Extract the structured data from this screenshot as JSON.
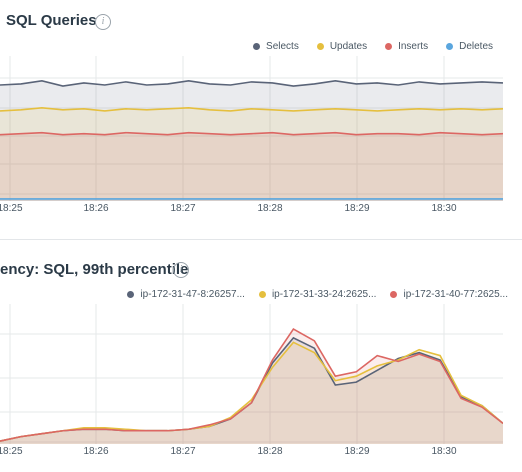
{
  "panels": [
    {
      "title": "SQL Queries",
      "info_icon": "info-icon",
      "legend": [
        {
          "name": "Selects",
          "color": "#5a6478"
        },
        {
          "name": "Updates",
          "color": "#e5bf3e"
        },
        {
          "name": "Inserts",
          "color": "#dc6763"
        },
        {
          "name": "Deletes",
          "color": "#5aa6de"
        }
      ],
      "x_ticks": [
        "18:25",
        "18:26",
        "18:27",
        "18:28",
        "18:29",
        "18:30"
      ]
    },
    {
      "title": "ency: SQL, 99th percentile",
      "info_icon": "info-icon",
      "legend": [
        {
          "name": "ip-172-31-47-8:26257...",
          "color": "#5a6478"
        },
        {
          "name": "ip-172-31-33-24:2625...",
          "color": "#e5bf3e"
        },
        {
          "name": "ip-172-31-40-77:2625...",
          "color": "#dc6763"
        }
      ],
      "x_ticks": [
        "18:25",
        "18:26",
        "18:27",
        "18:28",
        "18:29",
        "18:30"
      ]
    }
  ],
  "chart_data": [
    {
      "type": "area",
      "title": "SQL Queries",
      "x": [
        "18:24:45",
        "18:25",
        "18:25:15",
        "18:25:30",
        "18:25:45",
        "18:26",
        "18:26:15",
        "18:26:30",
        "18:26:45",
        "18:27",
        "18:27:15",
        "18:27:30",
        "18:27:45",
        "18:28",
        "18:28:15",
        "18:28:30",
        "18:28:45",
        "18:29",
        "18:29:15",
        "18:29:30",
        "18:29:45",
        "18:30",
        "18:30:15",
        "18:30:30",
        "18:30:45"
      ],
      "series": [
        {
          "name": "Selects",
          "color": "#5a6478",
          "values": [
            112,
            113,
            116,
            111,
            114,
            112,
            115,
            112,
            113,
            116,
            113,
            112,
            115,
            114,
            111,
            113,
            116,
            113,
            114,
            112,
            115,
            113,
            114,
            115,
            114
          ]
        },
        {
          "name": "Updates",
          "color": "#e5bf3e",
          "values": [
            87,
            88,
            90,
            88,
            89,
            87,
            89,
            88,
            89,
            90,
            88,
            87,
            89,
            88,
            87,
            88,
            89,
            88,
            87,
            88,
            89,
            88,
            89,
            88,
            89
          ]
        },
        {
          "name": "Inserts",
          "color": "#dc6763",
          "values": [
            64,
            65,
            66,
            64,
            65,
            64,
            66,
            65,
            64,
            66,
            65,
            64,
            65,
            66,
            64,
            65,
            66,
            64,
            65,
            65,
            64,
            66,
            65,
            64,
            65
          ]
        },
        {
          "name": "Deletes",
          "color": "#5aa6de",
          "values": [
            2,
            2,
            2,
            2,
            2,
            2,
            2,
            2,
            2,
            2,
            2,
            2,
            2,
            2,
            2,
            2,
            2,
            2,
            2,
            2,
            2,
            2,
            2,
            2,
            2
          ]
        }
      ],
      "ylim": [
        0,
        140
      ],
      "grid": true,
      "legend_position": "top-right"
    },
    {
      "type": "area",
      "title": "ency: SQL, 99th percentile",
      "x": [
        "18:24:45",
        "18:25",
        "18:25:15",
        "18:25:30",
        "18:25:45",
        "18:26",
        "18:26:15",
        "18:26:30",
        "18:26:45",
        "18:27",
        "18:27:15",
        "18:27:30",
        "18:27:45",
        "18:28",
        "18:28:15",
        "18:28:30",
        "18:28:45",
        "18:29",
        "18:29:15",
        "18:29:30",
        "18:29:45",
        "18:30",
        "18:30:15",
        "18:30:30",
        "18:30:45"
      ],
      "series": [
        {
          "name": "ip-172-31-47-8:26257...",
          "color": "#5a6478",
          "values": [
            2,
            5,
            7,
            9,
            10,
            10,
            9,
            9,
            9,
            10,
            12,
            17,
            28,
            55,
            72,
            65,
            40,
            42,
            50,
            58,
            62,
            57,
            32,
            26,
            14
          ]
        },
        {
          "name": "ip-172-31-33-24:2625...",
          "color": "#e5bf3e",
          "values": [
            2,
            5,
            7,
            9,
            11,
            11,
            10,
            9,
            9,
            10,
            12,
            18,
            30,
            52,
            69,
            62,
            43,
            46,
            53,
            57,
            64,
            60,
            33,
            26,
            14
          ]
        },
        {
          "name": "ip-172-31-40-77:2625...",
          "color": "#dc6763",
          "values": [
            2,
            5,
            7,
            9,
            10,
            10,
            9,
            9,
            9,
            10,
            13,
            17,
            28,
            57,
            78,
            70,
            46,
            49,
            60,
            56,
            61,
            56,
            31,
            25,
            14
          ]
        }
      ],
      "ylim": [
        0,
        95
      ],
      "grid": true,
      "legend_position": "top-right"
    }
  ]
}
